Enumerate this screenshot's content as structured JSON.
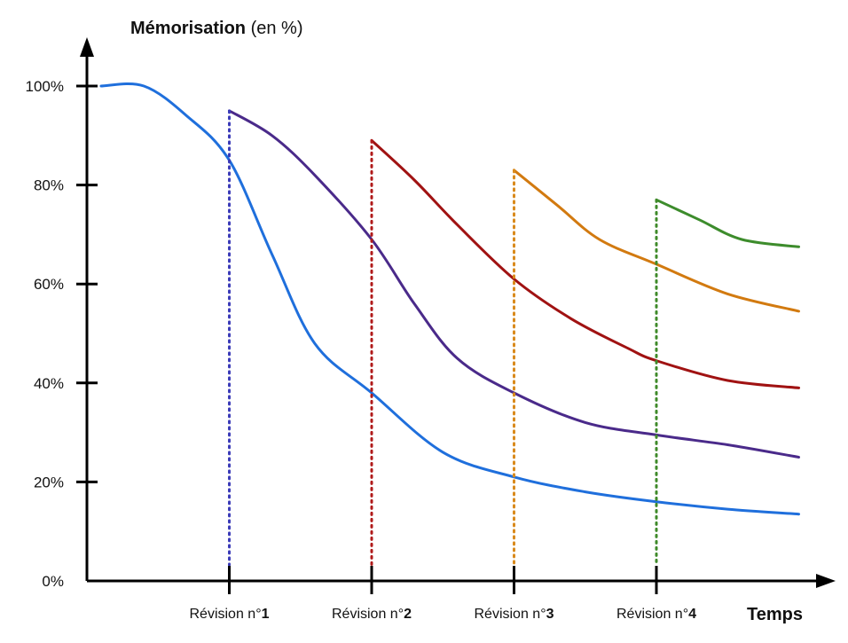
{
  "chart_data": {
    "type": "line",
    "title": "Mémorisation",
    "title_suffix": " (en %)",
    "xlabel": "Temps",
    "ylabel": "Mémorisation (en %)",
    "ylim": [
      0,
      100
    ],
    "xlim": [
      0,
      5
    ],
    "grid": false,
    "legend": "none",
    "y_ticks": [
      {
        "value": 0,
        "label": "0%"
      },
      {
        "value": 20,
        "label": "20%"
      },
      {
        "value": 40,
        "label": "40%"
      },
      {
        "value": 60,
        "label": "60%"
      },
      {
        "value": 80,
        "label": "80%"
      },
      {
        "value": 100,
        "label": "100%"
      }
    ],
    "revisions": [
      {
        "x": 1,
        "prefix": "Révision n°",
        "num": "1",
        "color": "#3b3bb8"
      },
      {
        "x": 2,
        "prefix": "Révision n°",
        "num": "2",
        "color": "#b01a1a"
      },
      {
        "x": 3,
        "prefix": "Révision n°",
        "num": "3",
        "color": "#d98a1c"
      },
      {
        "x": 4,
        "prefix": "Révision n°",
        "num": "4",
        "color": "#3f8a2a"
      }
    ],
    "series": [
      {
        "color": "#1f6fdc",
        "points": [
          [
            0.1,
            100
          ],
          [
            0.4,
            100
          ],
          [
            0.7,
            94
          ],
          [
            1.0,
            85
          ],
          [
            1.3,
            66
          ],
          [
            1.6,
            48
          ],
          [
            2.0,
            38
          ],
          [
            2.5,
            26
          ],
          [
            3.0,
            21
          ],
          [
            3.5,
            18
          ],
          [
            4.0,
            16
          ],
          [
            4.5,
            14.5
          ],
          [
            5.0,
            13.5
          ]
        ]
      },
      {
        "color": "#4a2a8a",
        "points": [
          [
            1.0,
            95
          ],
          [
            1.3,
            90
          ],
          [
            1.6,
            82
          ],
          [
            2.0,
            69
          ],
          [
            2.3,
            56
          ],
          [
            2.6,
            45
          ],
          [
            3.0,
            38
          ],
          [
            3.5,
            32
          ],
          [
            4.0,
            29.5
          ],
          [
            4.5,
            27.5
          ],
          [
            5.0,
            25
          ]
        ]
      },
      {
        "color": "#a01212",
        "points": [
          [
            2.0,
            89
          ],
          [
            2.3,
            81
          ],
          [
            2.6,
            72
          ],
          [
            3.0,
            61
          ],
          [
            3.4,
            53
          ],
          [
            3.8,
            47
          ],
          [
            4.0,
            44.5
          ],
          [
            4.5,
            40.5
          ],
          [
            5.0,
            39
          ]
        ]
      },
      {
        "color": "#d27a10",
        "points": [
          [
            3.0,
            83
          ],
          [
            3.3,
            76
          ],
          [
            3.6,
            69
          ],
          [
            4.0,
            64
          ],
          [
            4.5,
            58
          ],
          [
            5.0,
            54.5
          ]
        ]
      },
      {
        "color": "#3d8c2c",
        "points": [
          [
            4.0,
            77
          ],
          [
            4.3,
            73
          ],
          [
            4.6,
            69
          ],
          [
            5.0,
            67.5
          ]
        ]
      }
    ]
  }
}
